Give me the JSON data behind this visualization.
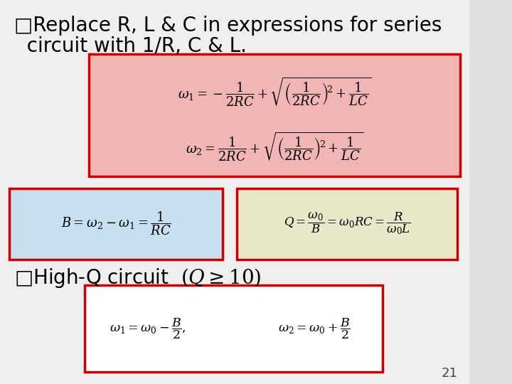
{
  "background_color": "#e0e0e0",
  "slide_bg": "#efefef",
  "title_text_1": "□Replace R, L & C in expressions for series",
  "title_text_2": "  circuit with 1/R, C & L.",
  "title_fontsize": 20,
  "page_number": "21",
  "box1_bg": "#f2b5b5",
  "box1_border": "#cc0000",
  "box2_bg": "#c8dff0",
  "box2_border": "#cc0000",
  "box3_bg": "#e8e8c8",
  "box3_border": "#cc0000",
  "box4_bg": "#ffffff",
  "box4_border": "#cc0000",
  "eq1": "$\\omega_1 = -\\dfrac{1}{2RC} + \\sqrt{\\left(\\dfrac{1}{2RC}\\right)^{\\!2} + \\dfrac{1}{LC}}$",
  "eq2": "$\\omega_2 = \\dfrac{1}{2RC} + \\sqrt{\\left(\\dfrac{1}{2RC}\\right)^{\\!2} + \\dfrac{1}{LC}}$",
  "eq3": "$B = \\omega_2 - \\omega_1 = \\dfrac{1}{RC}$",
  "eq4": "$Q = \\dfrac{\\omega_0}{B} = \\omega_0 RC = \\dfrac{R}{\\omega_0 L}$",
  "eq5": "$\\omega_1 = \\omega_0 - \\dfrac{B}{2},$",
  "eq6": "$\\omega_2 = \\omega_0 + \\dfrac{B}{2}$",
  "bullet2": "□High-Q circuit",
  "eq_condition": "$(Q \\geq 10)$"
}
